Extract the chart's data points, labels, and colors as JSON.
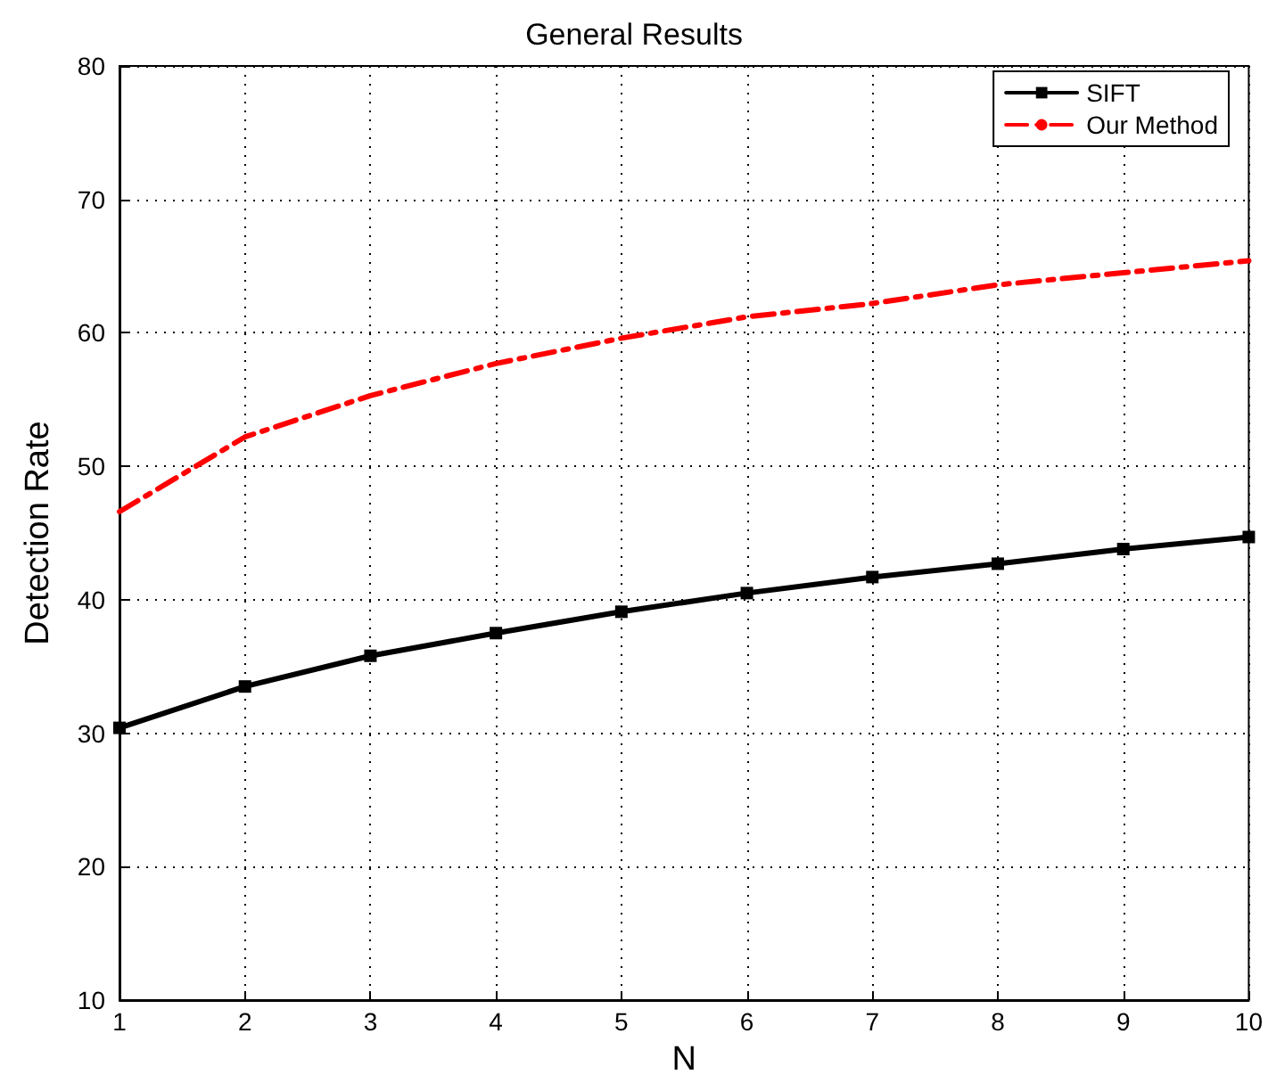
{
  "chart_data": {
    "type": "line",
    "title": "General Results",
    "xlabel": "N",
    "ylabel": "Detection Rate",
    "x": [
      1,
      2,
      3,
      4,
      5,
      6,
      7,
      8,
      9,
      10
    ],
    "series": [
      {
        "name": "SIFT",
        "color": "#000000",
        "marker": "square",
        "line_style": "solid",
        "values": [
          30.4,
          33.5,
          35.8,
          37.5,
          39.1,
          40.5,
          41.7,
          42.7,
          43.8,
          44.7
        ]
      },
      {
        "name": "Our Method",
        "color": "#ff0000",
        "marker": "none",
        "line_style": "dashed",
        "values": [
          46.6,
          52.2,
          55.3,
          57.7,
          59.6,
          61.2,
          62.2,
          63.6,
          64.5,
          65.4
        ]
      }
    ],
    "xlim": [
      1,
      10
    ],
    "xticks": [
      1,
      2,
      3,
      4,
      5,
      6,
      7,
      8,
      9,
      10
    ],
    "ylim": [
      10,
      80
    ],
    "yticks": [
      10,
      20,
      30,
      40,
      50,
      60,
      70,
      80
    ],
    "grid": true,
    "legend": "top right"
  }
}
